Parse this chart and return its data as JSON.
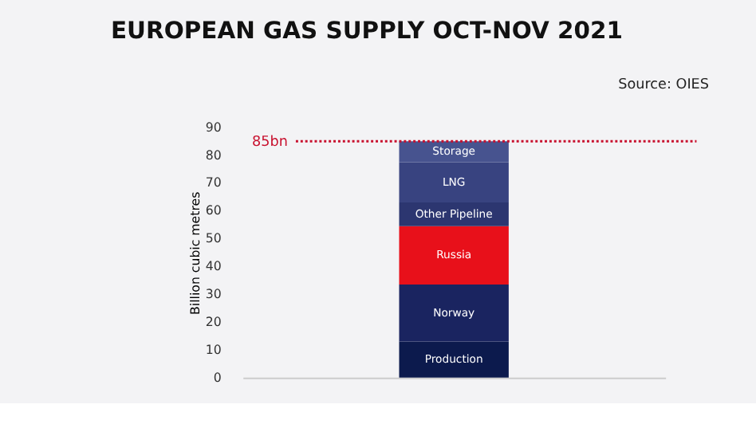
{
  "chart_data": {
    "type": "bar",
    "title": "EUROPEAN GAS SUPPLY OCT-NOV 2021",
    "ylabel": "Billion cubic metres",
    "annotations": [
      "Source: OIES"
    ],
    "categories": [
      null
    ],
    "stacked": true,
    "legend": false,
    "grid": false,
    "tick_labels": "y",
    "series": [
      {
        "name": "Production",
        "color": "#0c1a4d",
        "values": [
          13
        ]
      },
      {
        "name": "Norway",
        "color": "#1a2460",
        "values": [
          20.5
        ]
      },
      {
        "name": "Russia",
        "color": "#e8101a",
        "values": [
          21
        ]
      },
      {
        "name": "Other Pipeline",
        "color": "#2c3670",
        "values": [
          8.5
        ]
      },
      {
        "name": "LNG",
        "color": "#384380",
        "values": [
          14.5
        ]
      },
      {
        "name": "Storage",
        "color": "#47538f",
        "values": [
          7.5
        ]
      }
    ],
    "ylim": [
      0,
      90
    ],
    "yticks": [
      0,
      10,
      20,
      30,
      40,
      50,
      60,
      70,
      80,
      90
    ],
    "ref_lines": [
      {
        "axis": "y",
        "value": 85,
        "label": "85bn",
        "color": "#c8102e",
        "line_style": "dotted"
      }
    ]
  }
}
